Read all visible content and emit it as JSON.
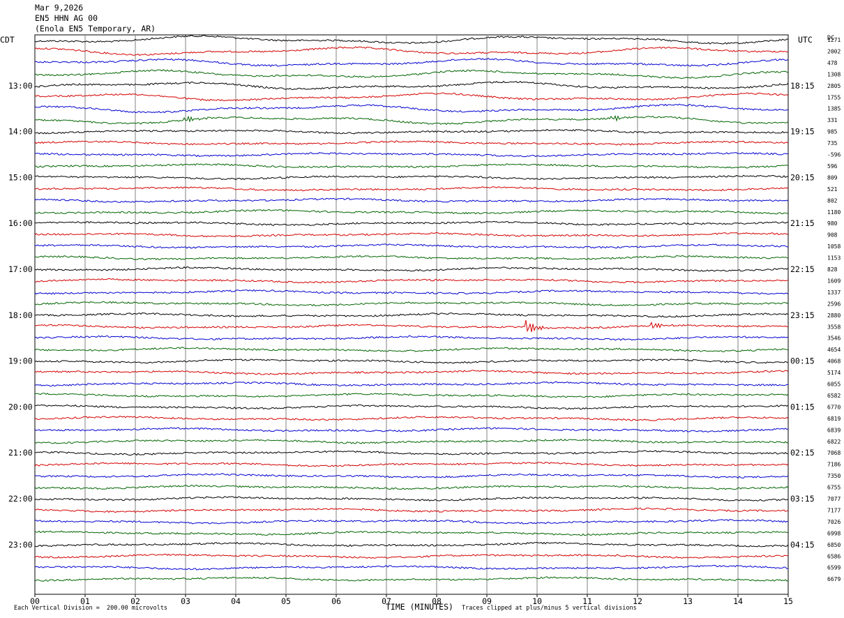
{
  "header": {
    "date": "Mar 9,2026",
    "station": "EN5 HHN AG 00",
    "location": "(Enola EN5 Temporary, AR)"
  },
  "left_tz": "CDT",
  "right_tz": "UTC",
  "dc_label": "DC",
  "footer": {
    "scale": "Each Vertical Division =  200.00 microvolts",
    "xlabel": "TIME (MINUTES)",
    "clip_note": "Traces clipped at plus/minus 5 vertical divisions"
  },
  "colors": {
    "black": "#000000",
    "red": "#d40000",
    "blue": "#0000d0",
    "green": "#006400",
    "grid": "#808080"
  },
  "chart_data": {
    "type": "line",
    "title": "Mar 9,2026 EN5 HHN AG 00 (Enola EN5 Temporary, AR)",
    "xlabel": "TIME (MINUTES)",
    "xlim": [
      0,
      15
    ],
    "x_ticks": [
      "00",
      "01",
      "02",
      "03",
      "04",
      "05",
      "06",
      "07",
      "08",
      "09",
      "10",
      "11",
      "12",
      "13",
      "14",
      "15"
    ],
    "trace_colors_cycle": [
      "black",
      "red",
      "blue",
      "green"
    ],
    "left_hour_labels": [
      "13:00",
      "14:00",
      "15:00",
      "16:00",
      "17:00",
      "18:00",
      "19:00",
      "20:00",
      "21:00",
      "22:00",
      "23:00"
    ],
    "right_hour_labels": [
      "18:15",
      "19:15",
      "20:15",
      "21:15",
      "22:15",
      "23:15",
      "00:15",
      "01:15",
      "02:15",
      "03:15",
      "04:15"
    ],
    "dc_offsets": [
      "1271",
      "2002",
      "478",
      "1308",
      "2805",
      "1755",
      "1385",
      "331",
      "985",
      "735",
      "-596",
      "596",
      "809",
      "521",
      "802",
      "1180",
      "980",
      "908",
      "1058",
      "1153",
      "828",
      "1609",
      "1337",
      "2596",
      "2880",
      "3558",
      "3546",
      "4654",
      "4068",
      "5174",
      "6055",
      "6582",
      "6770",
      "6819",
      "6839",
      "6822",
      "7068",
      "7186",
      "7350",
      "6755",
      "7077",
      "7177",
      "7026",
      "6998",
      "6850",
      "6586",
      "6599",
      "6679"
    ],
    "events": [
      {
        "trace_index": 25,
        "minute": 9.8,
        "description": "clear local event burst"
      },
      {
        "trace_index": 25,
        "minute": 12.3,
        "description": "small burst"
      },
      {
        "trace_index": 7,
        "minute": 3.0,
        "description": "spike"
      },
      {
        "trace_index": 7,
        "minute": 11.5,
        "description": "spike"
      }
    ],
    "grid": true
  }
}
